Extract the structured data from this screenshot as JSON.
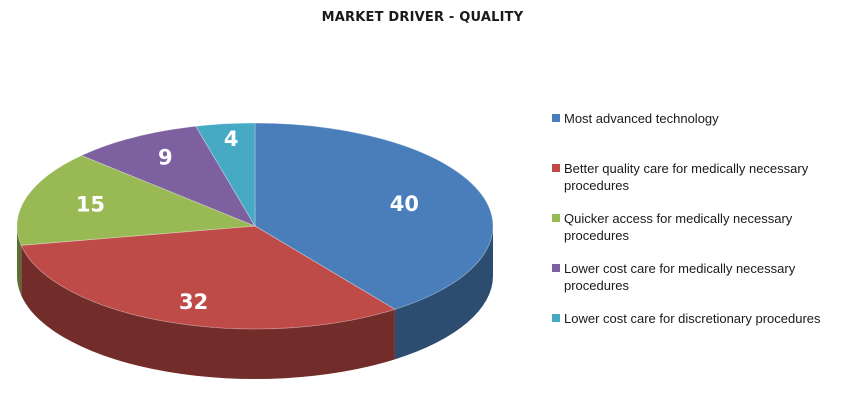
{
  "chart_data": {
    "type": "pie",
    "title": "MARKET DRIVER - QUALITY",
    "categories": [
      "Most advanced technology",
      "Better quality care for medically necessary procedures",
      "Quicker access for medically necessary procedures",
      "Lower cost care for medically necessary procedures",
      "Lower cost care for discretionary procedures"
    ],
    "values": [
      40,
      32,
      15,
      9,
      4
    ],
    "data_labels": [
      "40",
      "32",
      "15",
      "9",
      "4"
    ],
    "colors": [
      "#4a7ebb",
      "#be4b48",
      "#98b954",
      "#7d60a0",
      "#46aac5"
    ],
    "legend_position": "right",
    "three_d": true
  }
}
